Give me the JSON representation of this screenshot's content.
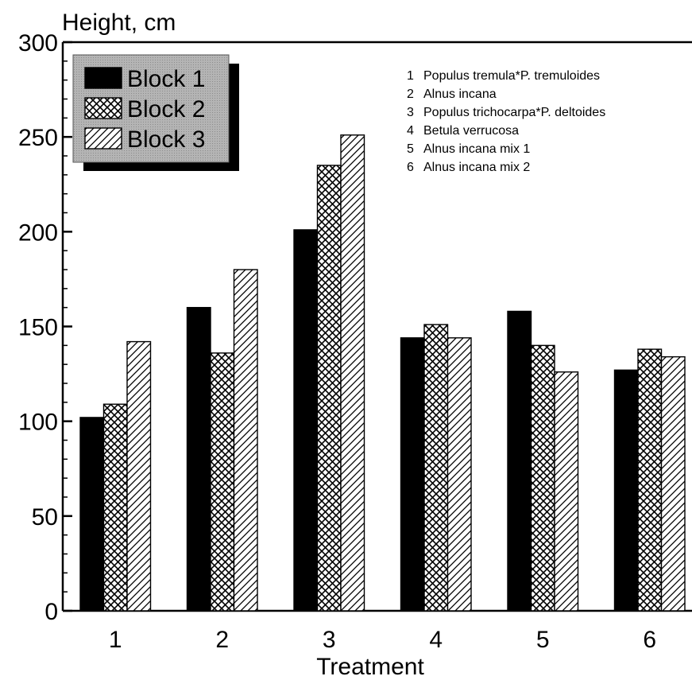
{
  "chart_data": {
    "type": "bar",
    "ylabel": "Height, cm",
    "xlabel": "Treatment",
    "categories": [
      "1",
      "2",
      "3",
      "4",
      "5",
      "6"
    ],
    "ylim": [
      0,
      300
    ],
    "yticks": [
      "0",
      "50",
      "100",
      "150",
      "200",
      "250",
      "300"
    ],
    "grid": false,
    "legend_position": "top-left",
    "series": [
      {
        "name": "Block 1",
        "pattern": "solid",
        "color": "#000000",
        "values": [
          102,
          160,
          201,
          144,
          158,
          127
        ]
      },
      {
        "name": "Block 2",
        "pattern": "crosshatch",
        "color": "#000000",
        "values": [
          109,
          136,
          235,
          151,
          140,
          138
        ]
      },
      {
        "name": "Block 3",
        "pattern": "diagonal",
        "color": "#000000",
        "values": [
          142,
          180,
          251,
          144,
          126,
          134
        ]
      }
    ],
    "treatment_key": [
      {
        "num": "1",
        "name": "Populus tremula*P. tremuloides"
      },
      {
        "num": "2",
        "name": "Alnus incana"
      },
      {
        "num": "3",
        "name": "Populus trichocarpa*P. deltoides"
      },
      {
        "num": "4",
        "name": "Betula verrucosa"
      },
      {
        "num": "5",
        "name": "Alnus incana mix 1"
      },
      {
        "num": "6",
        "name": "Alnus incana mix 2"
      }
    ]
  }
}
